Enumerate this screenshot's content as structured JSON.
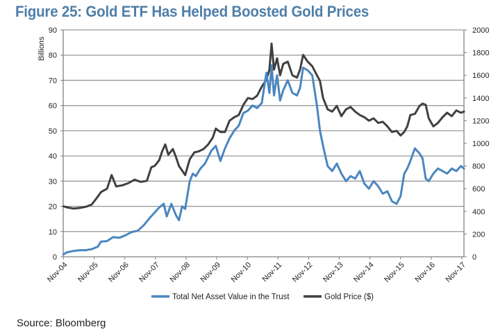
{
  "header": {
    "title": "Figure 25: Gold ETF Has Helped Boosted Gold Prices"
  },
  "footer": {
    "source": "Source: Bloomberg"
  },
  "colors": {
    "title": "#4f7fa8",
    "nav_series": "#4a86c0",
    "gold_series": "#404040",
    "gridline": "#9a9a9a",
    "axis": "#808080"
  },
  "chart_data": {
    "type": "line",
    "title": "Figure 25: Gold ETF Has Helped Boosted Gold Prices",
    "xlabel": "",
    "ylabel": "Billions",
    "y2label": "",
    "grid": true,
    "legend_position": "bottom",
    "x_ticks": [
      "Nov-04",
      "Nov-05",
      "Nov-06",
      "Nov-07",
      "Nov-08",
      "Nov-09",
      "Nov-10",
      "Nov-11",
      "Nov-12",
      "Nov-13",
      "Nov-14",
      "Nov-15",
      "Nov-16",
      "Nov-17"
    ],
    "xlim": [
      2004.87,
      2017.95
    ],
    "ylim": [
      0,
      90
    ],
    "y_ticks": [
      0,
      10,
      20,
      30,
      40,
      50,
      60,
      70,
      80,
      90
    ],
    "y2lim": [
      0,
      2000
    ],
    "y2_ticks": [
      0,
      200,
      400,
      600,
      800,
      1000,
      1200,
      1400,
      1600,
      1800,
      2000
    ],
    "series": [
      {
        "name": "Total Net Asset Value in the Trust",
        "axis": "left",
        "x": [
          2004.88,
          2005.0,
          2005.2,
          2005.4,
          2005.6,
          2005.8,
          2006.0,
          2006.1,
          2006.3,
          2006.5,
          2006.7,
          2006.9,
          2007.1,
          2007.3,
          2007.5,
          2007.7,
          2007.85,
          2008.0,
          2008.15,
          2008.25,
          2008.4,
          2008.55,
          2008.65,
          2008.75,
          2008.85,
          2009.0,
          2009.1,
          2009.2,
          2009.35,
          2009.5,
          2009.7,
          2009.85,
          2010.0,
          2010.15,
          2010.3,
          2010.45,
          2010.6,
          2010.75,
          2010.9,
          2011.05,
          2011.2,
          2011.35,
          2011.5,
          2011.6,
          2011.67,
          2011.75,
          2011.85,
          2011.95,
          2012.05,
          2012.2,
          2012.35,
          2012.5,
          2012.6,
          2012.7,
          2012.85,
          2013.0,
          2013.15,
          2013.25,
          2013.35,
          2013.5,
          2013.65,
          2013.8,
          2013.95,
          2014.1,
          2014.25,
          2014.4,
          2014.55,
          2014.7,
          2014.85,
          2015.0,
          2015.15,
          2015.3,
          2015.45,
          2015.6,
          2015.75,
          2015.88,
          2016.0,
          2016.1,
          2016.2,
          2016.35,
          2016.5,
          2016.6,
          2016.7,
          2016.8,
          2016.95,
          2017.1,
          2017.25,
          2017.4,
          2017.55,
          2017.7,
          2017.85,
          2017.95
        ],
        "values": [
          1.0,
          1.8,
          2.3,
          2.6,
          2.6,
          3.0,
          4.0,
          6.0,
          6.2,
          7.8,
          7.5,
          8.5,
          9.8,
          10.3,
          12.5,
          15.5,
          17.5,
          19.5,
          21.0,
          16.0,
          21.0,
          16.5,
          14.5,
          20.0,
          19.0,
          30.0,
          33.0,
          32.0,
          35.0,
          37.0,
          42.0,
          44.0,
          38.0,
          43.0,
          47.0,
          50.0,
          52.0,
          57.0,
          58.0,
          60.0,
          59.0,
          61.0,
          73.0,
          65.0,
          76.0,
          64.0,
          72.0,
          62.0,
          66.0,
          70.0,
          65.0,
          64.0,
          67.0,
          75.0,
          74.0,
          72.0,
          60.0,
          50.0,
          44.0,
          36.0,
          34.0,
          37.0,
          33.0,
          30.0,
          32.0,
          31.0,
          34.0,
          29.0,
          27.0,
          30.0,
          28.0,
          25.0,
          26.0,
          22.0,
          21.0,
          24.0,
          33.0,
          35.0,
          38.0,
          43.0,
          41.0,
          39.0,
          31.0,
          30.0,
          33.0,
          35.0,
          34.0,
          33.0,
          35.0,
          34.0,
          36.0,
          35.0
        ]
      },
      {
        "name": "Gold Price ($)",
        "axis": "right",
        "x": [
          2004.88,
          2005.0,
          2005.2,
          2005.4,
          2005.6,
          2005.8,
          2006.0,
          2006.1,
          2006.3,
          2006.45,
          2006.6,
          2006.8,
          2007.0,
          2007.2,
          2007.4,
          2007.6,
          2007.75,
          2007.85,
          2008.0,
          2008.1,
          2008.2,
          2008.3,
          2008.45,
          2008.55,
          2008.65,
          2008.75,
          2008.85,
          2009.0,
          2009.15,
          2009.3,
          2009.45,
          2009.6,
          2009.75,
          2009.85,
          2010.0,
          2010.15,
          2010.3,
          2010.45,
          2010.6,
          2010.75,
          2010.9,
          2011.05,
          2011.2,
          2011.35,
          2011.5,
          2011.6,
          2011.67,
          2011.75,
          2011.85,
          2011.95,
          2012.05,
          2012.2,
          2012.35,
          2012.5,
          2012.6,
          2012.7,
          2012.85,
          2013.0,
          2013.15,
          2013.25,
          2013.35,
          2013.5,
          2013.65,
          2013.8,
          2013.95,
          2014.1,
          2014.25,
          2014.4,
          2014.55,
          2014.7,
          2014.85,
          2015.0,
          2015.15,
          2015.3,
          2015.45,
          2015.6,
          2015.75,
          2015.88,
          2016.0,
          2016.1,
          2016.2,
          2016.35,
          2016.5,
          2016.6,
          2016.7,
          2016.8,
          2016.95,
          2017.1,
          2017.25,
          2017.4,
          2017.55,
          2017.7,
          2017.85,
          2017.95
        ],
        "values": [
          445,
          435,
          425,
          430,
          440,
          460,
          530,
          570,
          600,
          720,
          620,
          630,
          650,
          680,
          660,
          670,
          790,
          800,
          850,
          930,
          990,
          900,
          950,
          880,
          800,
          760,
          720,
          860,
          920,
          930,
          950,
          990,
          1050,
          1130,
          1100,
          1100,
          1200,
          1230,
          1250,
          1340,
          1400,
          1390,
          1420,
          1500,
          1560,
          1650,
          1880,
          1650,
          1750,
          1600,
          1700,
          1720,
          1600,
          1580,
          1650,
          1780,
          1720,
          1680,
          1600,
          1550,
          1400,
          1300,
          1280,
          1330,
          1240,
          1300,
          1320,
          1280,
          1250,
          1230,
          1200,
          1220,
          1180,
          1190,
          1150,
          1100,
          1110,
          1070,
          1100,
          1150,
          1250,
          1260,
          1330,
          1350,
          1340,
          1220,
          1150,
          1180,
          1230,
          1270,
          1240,
          1290,
          1270,
          1280
        ]
      }
    ]
  }
}
